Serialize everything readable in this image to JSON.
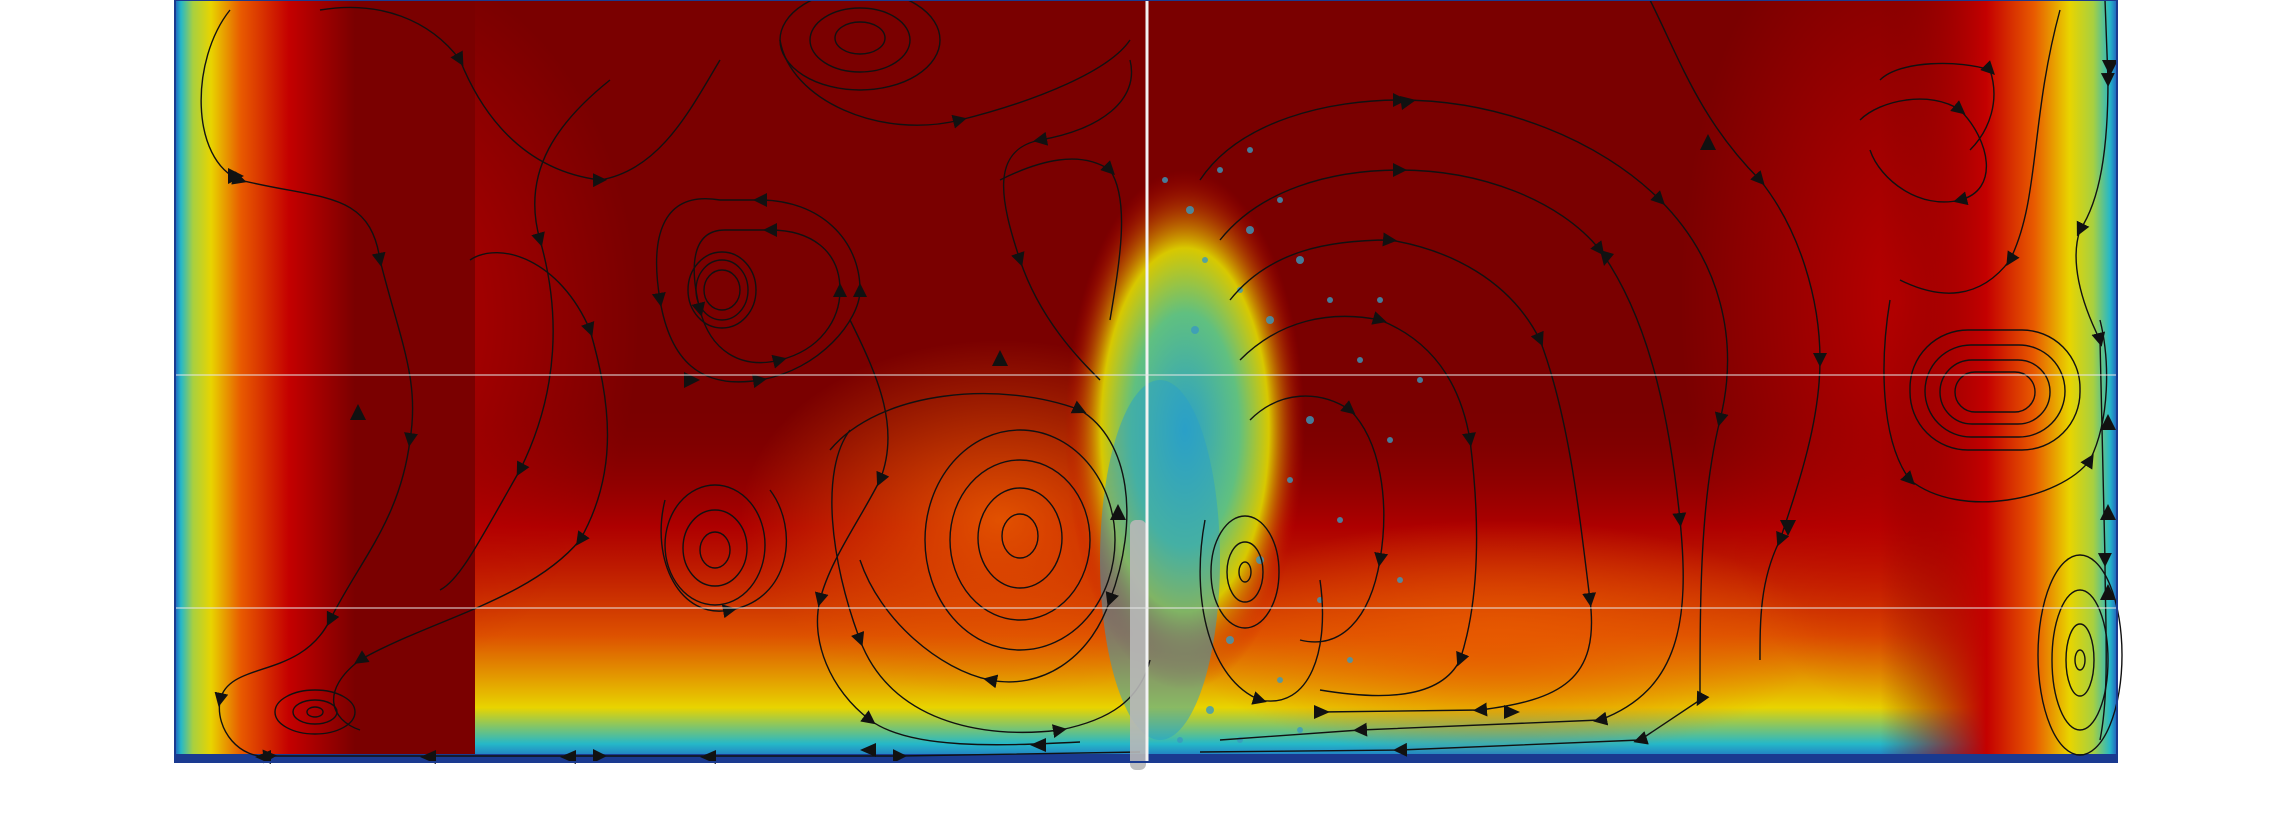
{
  "scene": {
    "description_free": true,
    "colormap": "jet",
    "colors": {
      "background": "#ffffff",
      "domain_edge": "#1020a0",
      "deep_red": "#7a0000",
      "red": "#c40000",
      "orange": "#e85a00",
      "yellow": "#e8d400",
      "cyan": "#25b8c8",
      "blue": "#2060c0",
      "streamline": "#111111",
      "divider": "#f2f2f2",
      "probe": "#b8b8b8"
    },
    "icons": [
      "streamline-arrow-icon"
    ]
  }
}
